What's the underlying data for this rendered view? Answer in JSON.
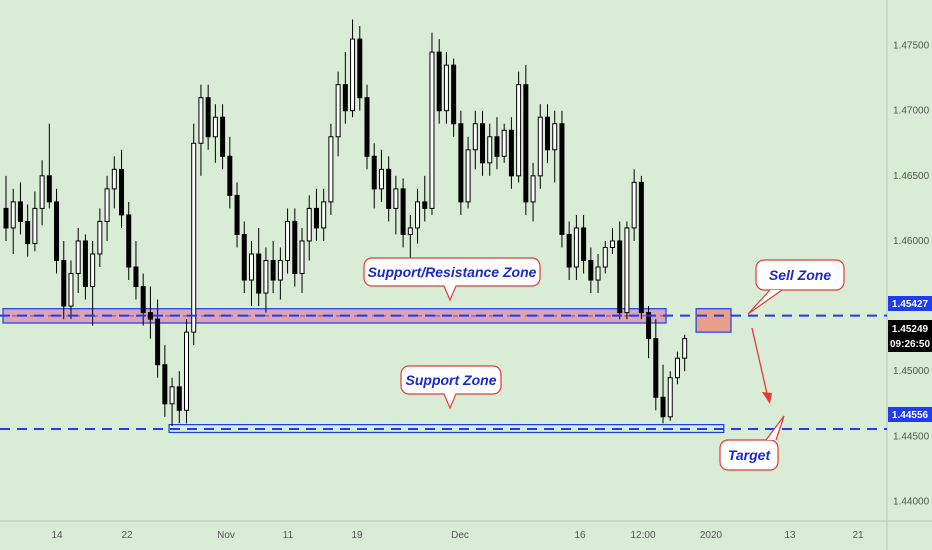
{
  "chart_data": {
    "type": "candlestick",
    "ylim": [
      1.4385,
      1.4785
    ],
    "y_ticks": [
      1.44,
      1.445,
      1.45,
      1.455,
      1.46,
      1.465,
      1.47,
      1.475
    ],
    "y_tick_labels": [
      "1.44000",
      "1.44500",
      "1.45000",
      "1.45500",
      "1.46000",
      "1.46500",
      "1.47000",
      "1.47500"
    ],
    "x_tick_labels": [
      "14",
      "22",
      "Nov",
      "11",
      "19",
      "Dec",
      "16",
      "12:00",
      "2020",
      "13",
      "21"
    ],
    "grid": false,
    "legend": "none",
    "candles": [
      [
        1.4625,
        1.465,
        1.46,
        1.461
      ],
      [
        1.461,
        1.464,
        1.459,
        1.463
      ],
      [
        1.463,
        1.4645,
        1.4605,
        1.4615
      ],
      [
        1.4615,
        1.4628,
        1.4588,
        1.4598
      ],
      [
        1.4598,
        1.4638,
        1.4592,
        1.4625
      ],
      [
        1.4625,
        1.4662,
        1.4612,
        1.465
      ],
      [
        1.465,
        1.469,
        1.4625,
        1.463
      ],
      [
        1.463,
        1.464,
        1.4575,
        1.4585
      ],
      [
        1.4585,
        1.46,
        1.454,
        1.455
      ],
      [
        1.455,
        1.4585,
        1.454,
        1.4575
      ],
      [
        1.4575,
        1.461,
        1.456,
        1.46
      ],
      [
        1.46,
        1.4605,
        1.4555,
        1.4565
      ],
      [
        1.4565,
        1.46,
        1.4535,
        1.459
      ],
      [
        1.459,
        1.4625,
        1.458,
        1.4615
      ],
      [
        1.4615,
        1.465,
        1.46,
        1.464
      ],
      [
        1.464,
        1.4665,
        1.4625,
        1.4655
      ],
      [
        1.4655,
        1.467,
        1.461,
        1.462
      ],
      [
        1.462,
        1.463,
        1.457,
        1.458
      ],
      [
        1.458,
        1.46,
        1.4555,
        1.4565
      ],
      [
        1.4565,
        1.4575,
        1.4535,
        1.4545
      ],
      [
        1.4545,
        1.4565,
        1.4525,
        1.454
      ],
      [
        1.454,
        1.4555,
        1.4495,
        1.4505
      ],
      [
        1.4505,
        1.452,
        1.4465,
        1.4475
      ],
      [
        1.4475,
        1.4495,
        1.4458,
        1.4488
      ],
      [
        1.4488,
        1.45,
        1.446,
        1.447
      ],
      [
        1.447,
        1.454,
        1.446,
        1.453
      ],
      [
        1.453,
        1.469,
        1.452,
        1.4675
      ],
      [
        1.4675,
        1.472,
        1.465,
        1.471
      ],
      [
        1.471,
        1.472,
        1.467,
        1.468
      ],
      [
        1.468,
        1.4705,
        1.466,
        1.4695
      ],
      [
        1.4695,
        1.4705,
        1.4655,
        1.4665
      ],
      [
        1.4665,
        1.468,
        1.4625,
        1.4635
      ],
      [
        1.4635,
        1.4645,
        1.4595,
        1.4605
      ],
      [
        1.4605,
        1.4615,
        1.456,
        1.457
      ],
      [
        1.457,
        1.46,
        1.455,
        1.459
      ],
      [
        1.459,
        1.461,
        1.455,
        1.456
      ],
      [
        1.456,
        1.4595,
        1.4545,
        1.4585
      ],
      [
        1.4585,
        1.46,
        1.456,
        1.457
      ],
      [
        1.457,
        1.4595,
        1.4555,
        1.4585
      ],
      [
        1.4585,
        1.4625,
        1.4575,
        1.4615
      ],
      [
        1.4615,
        1.4625,
        1.4565,
        1.4575
      ],
      [
        1.4575,
        1.461,
        1.456,
        1.46
      ],
      [
        1.46,
        1.4635,
        1.4585,
        1.4625
      ],
      [
        1.4625,
        1.464,
        1.46,
        1.461
      ],
      [
        1.461,
        1.464,
        1.46,
        1.463
      ],
      [
        1.463,
        1.469,
        1.462,
        1.468
      ],
      [
        1.468,
        1.473,
        1.4665,
        1.472
      ],
      [
        1.472,
        1.4745,
        1.469,
        1.47
      ],
      [
        1.47,
        1.477,
        1.4695,
        1.4755
      ],
      [
        1.4755,
        1.4765,
        1.47,
        1.471
      ],
      [
        1.471,
        1.472,
        1.4655,
        1.4665
      ],
      [
        1.4665,
        1.4675,
        1.4625,
        1.464
      ],
      [
        1.464,
        1.467,
        1.463,
        1.4655
      ],
      [
        1.4655,
        1.4665,
        1.4615,
        1.4625
      ],
      [
        1.4625,
        1.465,
        1.4605,
        1.464
      ],
      [
        1.464,
        1.4648,
        1.4595,
        1.4605
      ],
      [
        1.4605,
        1.462,
        1.4585,
        1.461
      ],
      [
        1.461,
        1.464,
        1.4598,
        1.463
      ],
      [
        1.463,
        1.465,
        1.4615,
        1.4625
      ],
      [
        1.4625,
        1.476,
        1.462,
        1.4745
      ],
      [
        1.4745,
        1.4755,
        1.469,
        1.47
      ],
      [
        1.47,
        1.4745,
        1.469,
        1.4735
      ],
      [
        1.4735,
        1.474,
        1.468,
        1.469
      ],
      [
        1.469,
        1.47,
        1.462,
        1.463
      ],
      [
        1.463,
        1.468,
        1.4625,
        1.467
      ],
      [
        1.467,
        1.47,
        1.4655,
        1.469
      ],
      [
        1.469,
        1.47,
        1.465,
        1.466
      ],
      [
        1.466,
        1.469,
        1.465,
        1.468
      ],
      [
        1.468,
        1.4695,
        1.4655,
        1.4665
      ],
      [
        1.4665,
        1.469,
        1.466,
        1.4685
      ],
      [
        1.4685,
        1.4695,
        1.464,
        1.465
      ],
      [
        1.465,
        1.473,
        1.4645,
        1.472
      ],
      [
        1.472,
        1.4735,
        1.462,
        1.463
      ],
      [
        1.463,
        1.466,
        1.4615,
        1.465
      ],
      [
        1.465,
        1.4705,
        1.464,
        1.4695
      ],
      [
        1.4695,
        1.4705,
        1.466,
        1.467
      ],
      [
        1.467,
        1.47,
        1.4645,
        1.469
      ],
      [
        1.469,
        1.47,
        1.4595,
        1.4605
      ],
      [
        1.4605,
        1.4615,
        1.457,
        1.458
      ],
      [
        1.458,
        1.462,
        1.457,
        1.461
      ],
      [
        1.461,
        1.462,
        1.4575,
        1.4585
      ],
      [
        1.4585,
        1.4595,
        1.456,
        1.457
      ],
      [
        1.457,
        1.459,
        1.456,
        1.458
      ],
      [
        1.458,
        1.46,
        1.4575,
        1.4595
      ],
      [
        1.4595,
        1.461,
        1.459,
        1.46
      ],
      [
        1.46,
        1.4615,
        1.454,
        1.4545
      ],
      [
        1.4545,
        1.4615,
        1.454,
        1.461
      ],
      [
        1.461,
        1.4655,
        1.46,
        1.4645
      ],
      [
        1.4645,
        1.465,
        1.454,
        1.4545
      ],
      [
        1.4545,
        1.455,
        1.451,
        1.4525
      ],
      [
        1.4525,
        1.454,
        1.447,
        1.448
      ],
      [
        1.448,
        1.4505,
        1.446,
        1.4465
      ],
      [
        1.4465,
        1.45,
        1.4462,
        1.4495
      ],
      [
        1.4495,
        1.4515,
        1.449,
        1.451
      ],
      [
        1.451,
        1.4528,
        1.45,
        1.4525
      ]
    ],
    "lines": [
      {
        "value": 1.45427,
        "label": "1.45427",
        "color": "#1e3cf0"
      },
      {
        "value": 1.44556,
        "label": "1.44556",
        "color": "#1e3cf0"
      }
    ],
    "current_price": {
      "value": 1.45249,
      "label": "1.45249",
      "countdown": "09:26:50"
    },
    "zones": [
      {
        "name": "Support/Resistance Zone",
        "low": 1.4537,
        "high": 1.4548,
        "start_index": 0,
        "end_index": 91
      },
      {
        "name": "Support Zone",
        "low": 1.4453,
        "high": 1.4459,
        "start_index": 23,
        "end_index": 99
      },
      {
        "name": "Sell Zone",
        "low": 1.453,
        "high": 1.4548,
        "start_index": 96,
        "end_index": 100
      }
    ],
    "annotations": [
      {
        "text": "Support/Resistance Zone"
      },
      {
        "text": "Support Zone"
      },
      {
        "text": "Sell Zone"
      },
      {
        "text": "Target"
      }
    ],
    "colors": {
      "background": "#d9ecd6",
      "candle": "#000000",
      "line": "#1e3cf0",
      "zone_fill": "#d9a3bd",
      "sell_fill": "#e8a08d",
      "callout_stroke": "#e53935",
      "callout_fill": "#ffffff",
      "callout_text": "#1a2ad0",
      "arrow": "#e53935",
      "axis_text": "#555555"
    }
  }
}
